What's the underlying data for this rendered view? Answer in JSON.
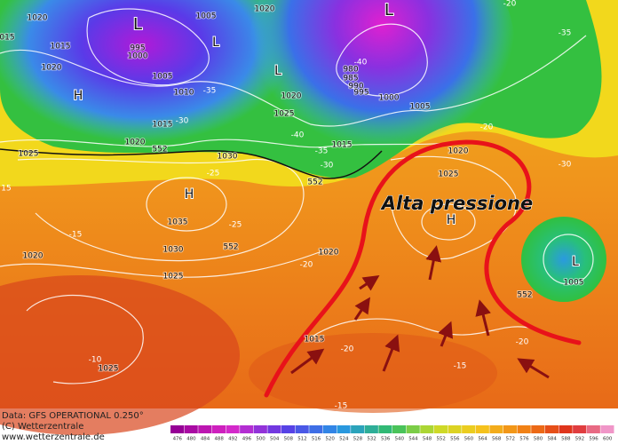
{
  "annotation": "Alta pressione",
  "pressure_centers": [
    "L",
    "L",
    "L",
    "L",
    "H",
    "H",
    "H",
    "L"
  ],
  "isobar_labels": [
    "1020",
    "015",
    "1015",
    "995",
    "1000",
    "1005",
    "1020",
    "1005",
    "1020",
    "1010",
    "-35",
    "1015",
    "1020",
    "-30",
    "552",
    "1025",
    "1020",
    "-40",
    "980",
    "985",
    "990",
    "995",
    "1000",
    "1005",
    "1015",
    "-40",
    "-35",
    "-30",
    "552",
    "1025",
    "1030",
    "-25",
    "1035",
    "-25",
    "552",
    "1030",
    "-20",
    "1020",
    "1020",
    "-15",
    "1025",
    "1020",
    "1025",
    "-20",
    "-35",
    "-30",
    "1005",
    "552",
    "-20",
    "1015",
    "-20",
    "-15",
    "-15",
    "1025",
    "-10",
    "-20",
    "15"
  ],
  "footer": {
    "data": "Data: GFS OPERATIONAL 0.250°",
    "copyright": "(C) Wetterzentrale",
    "url": "www.wetterzentrale.de"
  },
  "scale": [
    476,
    480,
    484,
    488,
    492,
    496,
    500,
    504,
    508,
    512,
    516,
    520,
    524,
    528,
    532,
    536,
    540,
    544,
    548,
    552,
    556,
    560,
    564,
    568,
    572,
    576,
    580,
    584,
    588,
    592,
    596,
    600
  ]
}
